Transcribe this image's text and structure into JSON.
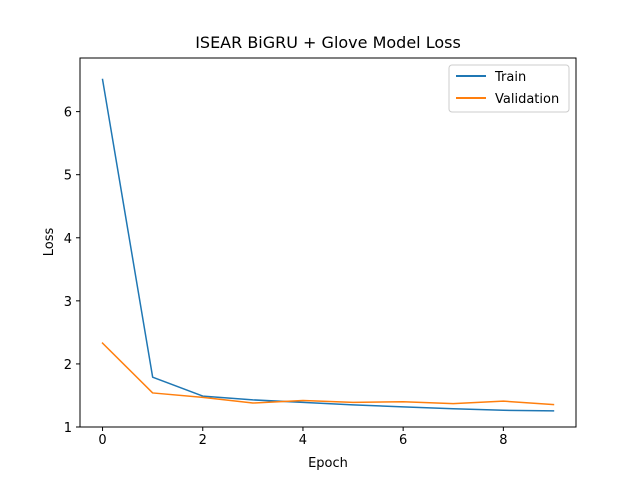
{
  "chart_data": {
    "type": "line",
    "title": "ISEAR BiGRU + Glove Model Loss",
    "xlabel": "Epoch",
    "ylabel": "Loss",
    "xlim": [
      -0.45,
      9.45
    ],
    "ylim": [
      1.0,
      6.85
    ],
    "xticks": [
      0,
      2,
      4,
      6,
      8
    ],
    "yticks": [
      1,
      2,
      3,
      4,
      5,
      6
    ],
    "grid": false,
    "legend_position": "top-right",
    "x": [
      0,
      1,
      2,
      3,
      4,
      5,
      6,
      7,
      8,
      9
    ],
    "series": [
      {
        "name": "Train",
        "color": "#1f77b4",
        "values": [
          6.51,
          1.79,
          1.49,
          1.43,
          1.39,
          1.35,
          1.32,
          1.29,
          1.265,
          1.255
        ]
      },
      {
        "name": "Validation",
        "color": "#ff7f0e",
        "values": [
          2.33,
          1.54,
          1.47,
          1.38,
          1.42,
          1.39,
          1.4,
          1.37,
          1.41,
          1.355
        ]
      }
    ]
  }
}
